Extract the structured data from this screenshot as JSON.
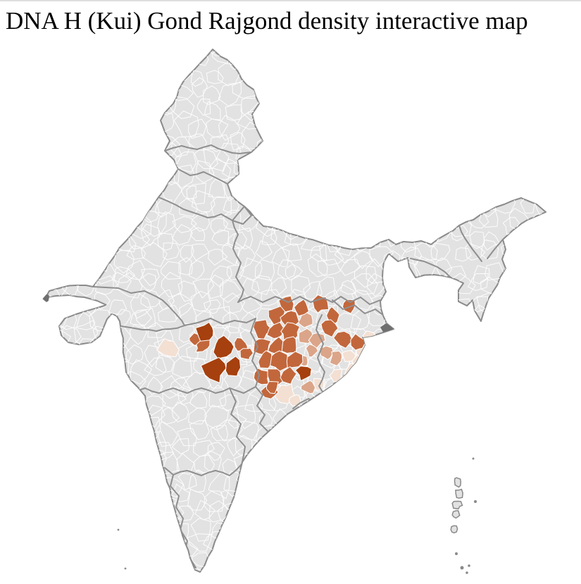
{
  "page": {
    "title": "DNA H (Kui) Gond Rajgond density interactive map",
    "background": "#FFFFFF",
    "top_rule_color": "#DEDEDE"
  },
  "map": {
    "type": "choropleth",
    "region": "India, district level",
    "palette": {
      "very_high": "#A6400E",
      "high": "#C2673C",
      "medium": "#DBA589",
      "low": "#F3E0D3",
      "none_base": "#E2E2E2",
      "no_data": "#6F6F6F"
    },
    "strokes": {
      "district_border": "#FFFFFF",
      "state_border": "#8F8F8F",
      "country_outline": "#8A8A8A"
    }
  }
}
